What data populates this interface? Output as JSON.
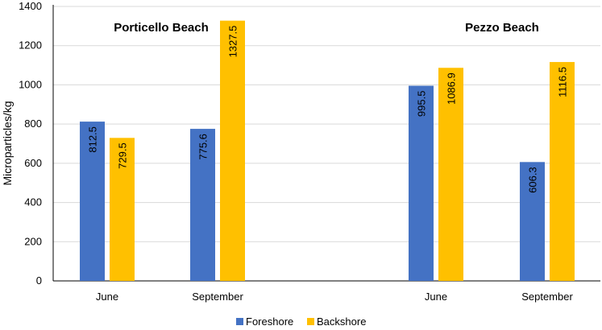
{
  "chart_data": {
    "type": "bar",
    "ylabel": "Microparticles/kg",
    "ylim": [
      0,
      1400
    ],
    "yticks": [
      0,
      200,
      400,
      600,
      800,
      1000,
      1200,
      1400
    ],
    "grid": true,
    "legend_position": "bottom",
    "groups": [
      {
        "label": "Porticello Beach",
        "categories": [
          "June",
          "September"
        ],
        "series": [
          {
            "name": "Foreshore",
            "values": [
              812.5,
              775.6
            ]
          },
          {
            "name": "Backshore",
            "values": [
              729.5,
              1327.5
            ]
          }
        ]
      },
      {
        "label": "Pezzo Beach",
        "categories": [
          "June",
          "September"
        ],
        "series": [
          {
            "name": "Foreshore",
            "values": [
              995.5,
              606.3
            ]
          },
          {
            "name": "Backshore",
            "values": [
              1086.9,
              1116.5
            ]
          }
        ]
      }
    ],
    "legend": [
      "Foreshore",
      "Backshore"
    ],
    "colors": {
      "Foreshore": "#4472C4",
      "Backshore": "#FFC000"
    }
  }
}
